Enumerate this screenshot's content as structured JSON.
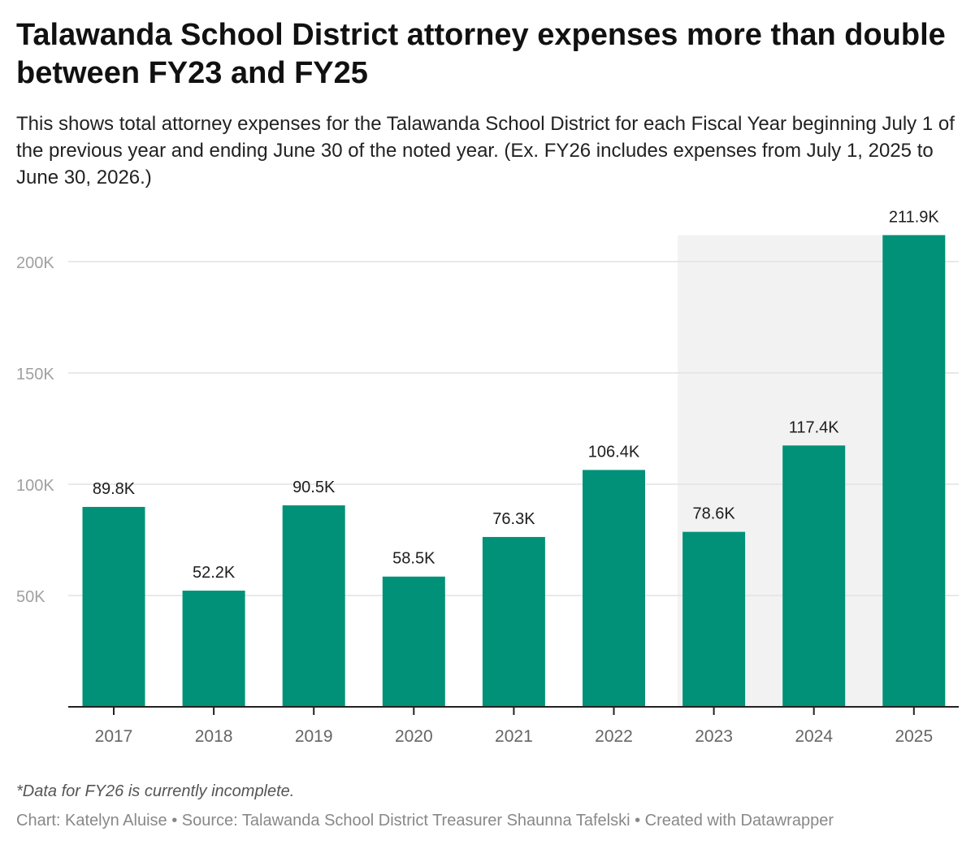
{
  "title": "Talawanda School District attorney expenses more than double between FY23 and FY25",
  "subtitle": "This shows total attorney expenses for the Talawanda School District for each Fiscal Year beginning July 1 of the previous year and ending June 30 of the noted year. (Ex. FY26 includes expenses from July 1, 2025 to June 30, 2026.)",
  "note": "*Data for FY26 is currently incomplete.",
  "credits": "Chart: Katelyn Aluise • Source: Talawanda School District Treasurer Shaunna Tafelski • Created with Datawrapper",
  "colors": {
    "bar": "#009178",
    "highlight": "#f2f2f2"
  },
  "chart_data": {
    "type": "bar",
    "categories": [
      "2017",
      "2018",
      "2019",
      "2020",
      "2021",
      "2022",
      "2023",
      "2024",
      "2025"
    ],
    "values": [
      89800,
      52200,
      90500,
      58500,
      76300,
      106400,
      78600,
      117400,
      211900
    ],
    "data_labels": [
      "89.8K",
      "52.2K",
      "90.5K",
      "58.5K",
      "76.3K",
      "106.4K",
      "78.6K",
      "117.4K",
      "211.9K"
    ],
    "yticks": [
      50000,
      100000,
      150000,
      200000
    ],
    "ytick_labels": [
      "50K",
      "100K",
      "150K",
      "200K"
    ],
    "ylim": [
      0,
      211900
    ],
    "grid": true,
    "highlight_categories": [
      "2023",
      "2024",
      "2025"
    ]
  }
}
